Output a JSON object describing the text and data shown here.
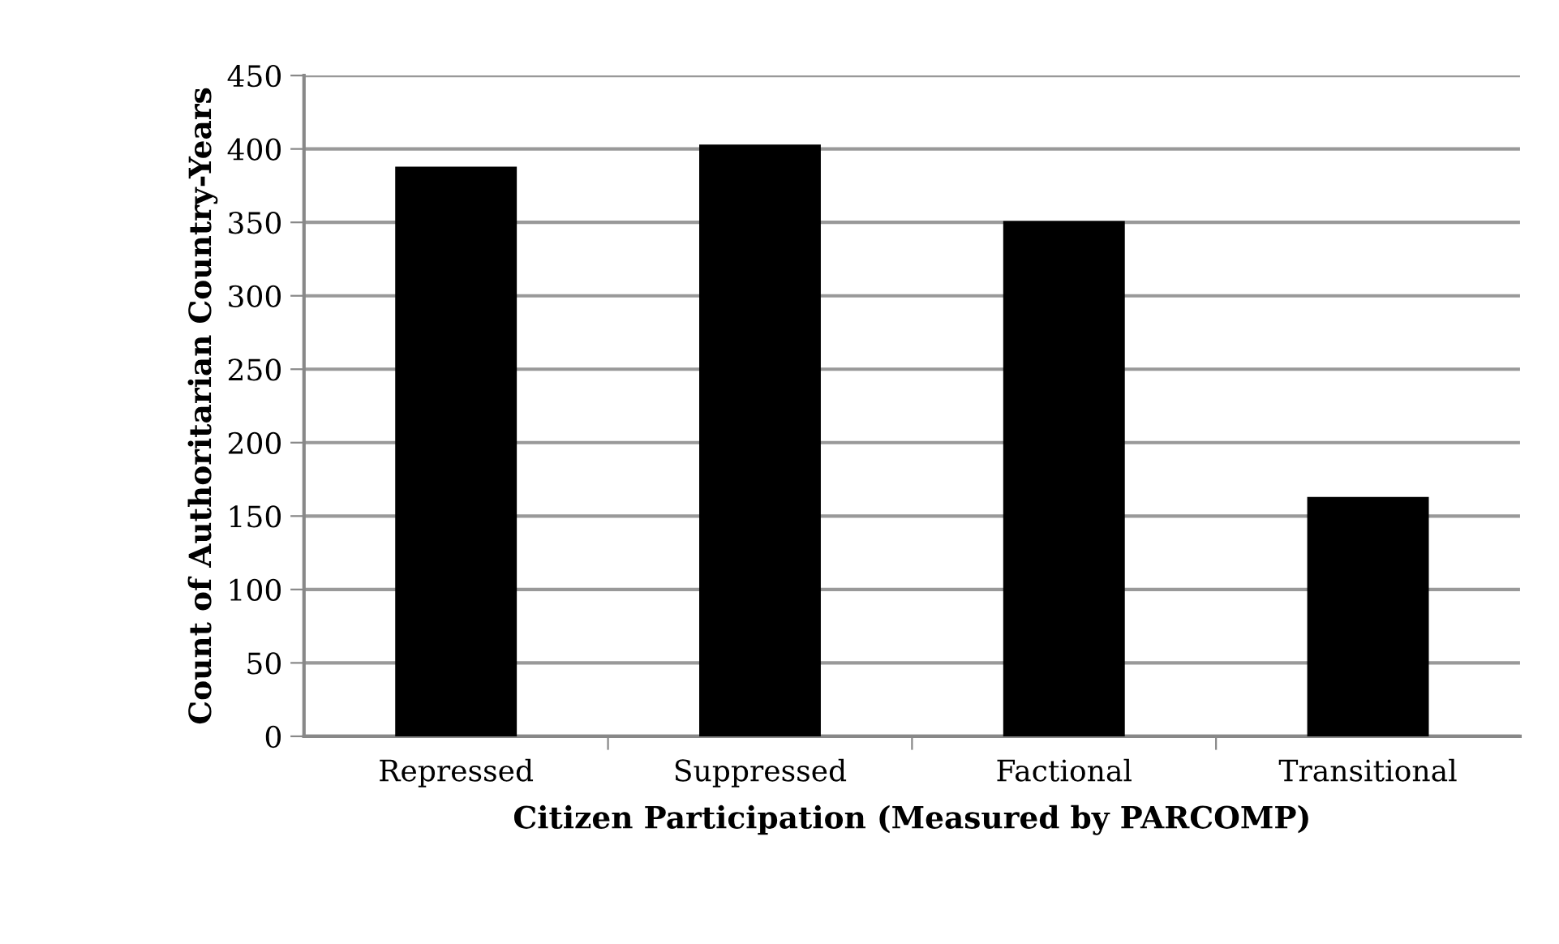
{
  "chart_data": {
    "type": "bar",
    "xlabel": "Citizen Participation (Measured by PARCOMP)",
    "ylabel": "Count of Authoritarian Country-Years",
    "categories": [
      "Repressed",
      "Suppressed",
      "Factional",
      "Transitional"
    ],
    "values": [
      388,
      403,
      351,
      163
    ],
    "color": "#000000",
    "ylim": [
      0,
      450
    ],
    "yticks": [
      0,
      50,
      100,
      150,
      200,
      250,
      300,
      350,
      400,
      450
    ],
    "grid": "y",
    "legend": false
  }
}
